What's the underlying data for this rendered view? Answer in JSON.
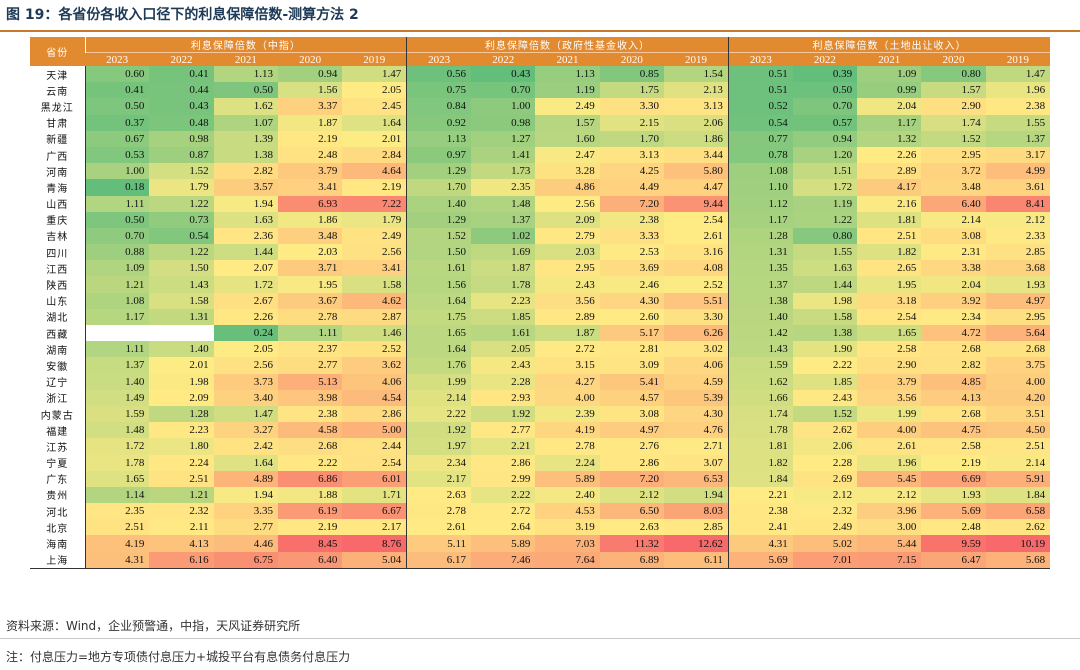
{
  "title": "图 19：各省份各收入口径下的利息保障倍数-测算方法 2",
  "table": {
    "province_header": "省份",
    "groups": [
      "利息保障倍数（中指）",
      "利息保障倍数（政府性基金收入）",
      "利息保障倍数（土地出让收入）"
    ],
    "years": [
      "2023",
      "2022",
      "2021",
      "2020",
      "2019"
    ],
    "rows": [
      {
        "name": "天津",
        "values": [
          "0.60",
          "0.41",
          "1.13",
          "0.94",
          "1.47",
          "0.56",
          "0.43",
          "1.13",
          "0.85",
          "1.54",
          "0.51",
          "0.39",
          "1.09",
          "0.80",
          "1.47"
        ]
      },
      {
        "name": "云南",
        "values": [
          "0.41",
          "0.44",
          "0.50",
          "1.56",
          "2.05",
          "0.75",
          "0.70",
          "1.19",
          "1.75",
          "2.13",
          "0.51",
          "0.50",
          "0.99",
          "1.57",
          "1.96"
        ]
      },
      {
        "name": "黑龙江",
        "values": [
          "0.50",
          "0.43",
          "1.62",
          "3.37",
          "2.45",
          "0.84",
          "1.00",
          "2.49",
          "3.30",
          "3.13",
          "0.52",
          "0.70",
          "2.04",
          "2.90",
          "2.38"
        ]
      },
      {
        "name": "甘肃",
        "values": [
          "0.37",
          "0.48",
          "1.07",
          "1.87",
          "1.64",
          "0.92",
          "0.98",
          "1.57",
          "2.15",
          "2.06",
          "0.54",
          "0.57",
          "1.17",
          "1.74",
          "1.55"
        ]
      },
      {
        "name": "新疆",
        "values": [
          "0.67",
          "0.98",
          "1.39",
          "2.19",
          "2.01",
          "1.13",
          "1.27",
          "1.60",
          "1.70",
          "1.86",
          "0.77",
          "0.94",
          "1.32",
          "1.52",
          "1.37"
        ]
      },
      {
        "name": "广西",
        "values": [
          "0.53",
          "0.87",
          "1.38",
          "2.48",
          "2.84",
          "0.97",
          "1.41",
          "2.47",
          "3.13",
          "3.44",
          "0.78",
          "1.20",
          "2.26",
          "2.95",
          "3.17"
        ]
      },
      {
        "name": "河南",
        "values": [
          "1.00",
          "1.52",
          "2.82",
          "3.79",
          "4.64",
          "1.29",
          "1.73",
          "3.28",
          "4.25",
          "5.80",
          "1.08",
          "1.51",
          "2.89",
          "3.72",
          "4.99"
        ]
      },
      {
        "name": "青海",
        "values": [
          "0.18",
          "1.79",
          "3.57",
          "3.41",
          "2.19",
          "1.70",
          "2.35",
          "4.86",
          "4.49",
          "4.47",
          "1.10",
          "1.72",
          "4.17",
          "3.48",
          "3.61"
        ]
      },
      {
        "name": "山西",
        "values": [
          "1.11",
          "1.22",
          "1.94",
          "6.93",
          "7.22",
          "1.40",
          "1.48",
          "2.56",
          "7.20",
          "9.44",
          "1.12",
          "1.19",
          "2.16",
          "6.40",
          "8.41"
        ]
      },
      {
        "name": "重庆",
        "values": [
          "0.50",
          "0.73",
          "1.63",
          "1.86",
          "1.79",
          "1.29",
          "1.37",
          "2.09",
          "2.38",
          "2.54",
          "1.17",
          "1.22",
          "1.81",
          "2.14",
          "2.12"
        ]
      },
      {
        "name": "吉林",
        "values": [
          "0.70",
          "0.54",
          "2.36",
          "3.48",
          "2.49",
          "1.52",
          "1.02",
          "2.79",
          "3.33",
          "2.61",
          "1.28",
          "0.80",
          "2.51",
          "3.08",
          "2.33"
        ]
      },
      {
        "name": "四川",
        "values": [
          "0.88",
          "1.22",
          "1.44",
          "2.03",
          "2.56",
          "1.50",
          "1.69",
          "2.03",
          "2.53",
          "3.16",
          "1.31",
          "1.55",
          "1.82",
          "2.31",
          "2.85"
        ]
      },
      {
        "name": "江西",
        "values": [
          "1.09",
          "1.50",
          "2.07",
          "3.71",
          "3.41",
          "1.61",
          "1.87",
          "2.95",
          "3.69",
          "4.08",
          "1.35",
          "1.63",
          "2.65",
          "3.38",
          "3.68"
        ]
      },
      {
        "name": "陕西",
        "values": [
          "1.21",
          "1.43",
          "1.72",
          "1.95",
          "1.58",
          "1.56",
          "1.78",
          "2.43",
          "2.46",
          "2.52",
          "1.37",
          "1.44",
          "1.95",
          "2.04",
          "1.93"
        ]
      },
      {
        "name": "山东",
        "values": [
          "1.08",
          "1.58",
          "2.67",
          "3.67",
          "4.62",
          "1.64",
          "2.23",
          "3.56",
          "4.30",
          "5.51",
          "1.38",
          "1.98",
          "3.18",
          "3.92",
          "4.97"
        ]
      },
      {
        "name": "湖北",
        "values": [
          "1.17",
          "1.31",
          "2.26",
          "2.78",
          "2.87",
          "1.75",
          "1.85",
          "2.89",
          "2.60",
          "3.30",
          "1.40",
          "1.58",
          "2.54",
          "2.34",
          "2.95"
        ]
      },
      {
        "name": "西藏",
        "values": [
          "",
          "",
          "0.24",
          "1.11",
          "1.46",
          "1.65",
          "1.61",
          "1.87",
          "5.17",
          "6.26",
          "1.42",
          "1.38",
          "1.65",
          "4.72",
          "5.64"
        ]
      },
      {
        "name": "湖南",
        "values": [
          "1.11",
          "1.40",
          "2.05",
          "2.37",
          "2.52",
          "1.64",
          "2.05",
          "2.72",
          "2.81",
          "3.02",
          "1.43",
          "1.90",
          "2.58",
          "2.68",
          "2.68"
        ]
      },
      {
        "name": "安徽",
        "values": [
          "1.37",
          "2.01",
          "2.56",
          "2.77",
          "3.62",
          "1.76",
          "2.43",
          "3.15",
          "3.09",
          "4.06",
          "1.59",
          "2.22",
          "2.90",
          "2.82",
          "3.75"
        ]
      },
      {
        "name": "辽宁",
        "values": [
          "1.40",
          "1.98",
          "3.73",
          "5.13",
          "4.06",
          "1.99",
          "2.28",
          "4.27",
          "5.41",
          "4.59",
          "1.62",
          "1.85",
          "3.79",
          "4.85",
          "4.00"
        ]
      },
      {
        "name": "浙江",
        "values": [
          "1.49",
          "2.09",
          "3.40",
          "3.98",
          "4.54",
          "2.14",
          "2.93",
          "4.00",
          "4.57",
          "5.39",
          "1.66",
          "2.43",
          "3.56",
          "4.13",
          "4.20"
        ]
      },
      {
        "name": "内蒙古",
        "values": [
          "1.59",
          "1.28",
          "1.47",
          "2.38",
          "2.86",
          "2.22",
          "1.92",
          "2.39",
          "3.08",
          "4.30",
          "1.74",
          "1.52",
          "1.99",
          "2.68",
          "3.51"
        ]
      },
      {
        "name": "福建",
        "values": [
          "1.48",
          "2.23",
          "3.27",
          "4.58",
          "5.00",
          "1.92",
          "2.77",
          "4.19",
          "4.97",
          "4.76",
          "1.78",
          "2.62",
          "4.00",
          "4.75",
          "4.50"
        ]
      },
      {
        "name": "江苏",
        "values": [
          "1.72",
          "1.80",
          "2.42",
          "2.68",
          "2.44",
          "1.97",
          "2.21",
          "2.78",
          "2.76",
          "2.71",
          "1.81",
          "2.06",
          "2.61",
          "2.58",
          "2.51"
        ]
      },
      {
        "name": "宁夏",
        "values": [
          "1.78",
          "2.24",
          "1.64",
          "2.22",
          "2.54",
          "2.34",
          "2.86",
          "2.24",
          "2.86",
          "3.07",
          "1.82",
          "2.28",
          "1.96",
          "2.19",
          "2.14"
        ]
      },
      {
        "name": "广东",
        "values": [
          "1.65",
          "2.51",
          "4.89",
          "6.86",
          "6.01",
          "2.17",
          "2.99",
          "5.89",
          "7.20",
          "6.53",
          "1.84",
          "2.69",
          "5.45",
          "6.69",
          "5.91"
        ]
      },
      {
        "name": "贵州",
        "values": [
          "1.14",
          "1.21",
          "1.94",
          "1.88",
          "1.71",
          "2.63",
          "2.22",
          "2.40",
          "2.12",
          "1.94",
          "2.21",
          "2.12",
          "2.12",
          "1.93",
          "1.84"
        ]
      },
      {
        "name": "河北",
        "values": [
          "2.35",
          "2.32",
          "3.35",
          "6.19",
          "6.67",
          "2.78",
          "2.72",
          "4.53",
          "6.50",
          "8.03",
          "2.38",
          "2.32",
          "3.96",
          "5.69",
          "6.58"
        ]
      },
      {
        "name": "北京",
        "values": [
          "2.51",
          "2.11",
          "2.77",
          "2.19",
          "2.17",
          "2.61",
          "2.64",
          "3.19",
          "2.63",
          "2.85",
          "2.41",
          "2.49",
          "3.00",
          "2.48",
          "2.62"
        ]
      },
      {
        "name": "海南",
        "values": [
          "4.19",
          "4.13",
          "4.46",
          "8.45",
          "8.76",
          "5.11",
          "5.89",
          "7.03",
          "11.32",
          "12.62",
          "4.31",
          "5.02",
          "5.44",
          "9.59",
          "10.19"
        ]
      },
      {
        "name": "上海",
        "values": [
          "4.31",
          "6.16",
          "6.75",
          "6.40",
          "5.04",
          "6.17",
          "7.46",
          "7.64",
          "6.89",
          "6.11",
          "5.69",
          "7.01",
          "7.15",
          "6.47",
          "5.68"
        ]
      }
    ]
  },
  "source": "资料来源：Wind，企业预警通，中指，天风证券研究所",
  "note": "注：付息压力=地方专项债付息压力+城投平台有息债务付息压力",
  "colors": {
    "header": "#e28a30",
    "low": "#63be7b",
    "mid": "#ffeb84",
    "high": "#f8696b"
  }
}
